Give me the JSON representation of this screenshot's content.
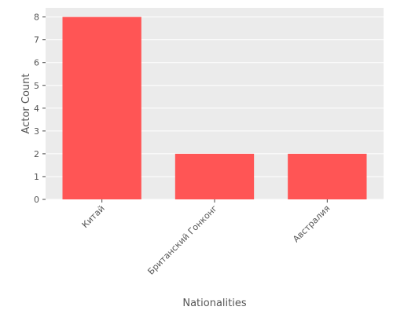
{
  "chart_data": {
    "type": "bar",
    "title": "",
    "xlabel": "Nationalities",
    "ylabel": "Actor Count",
    "categories": [
      "Китай",
      "Британский Гонконг",
      "Австралия"
    ],
    "values": [
      8,
      2,
      2
    ],
    "ylim": [
      0,
      8.4
    ],
    "yticks": [
      0,
      1,
      2,
      3,
      4,
      5,
      6,
      7,
      8
    ],
    "grid": true,
    "legend": "none",
    "colors": {
      "bar": "#ff5555",
      "plot_background": "#ebebeb",
      "grid": "#ffffff",
      "text": "#555555"
    }
  }
}
